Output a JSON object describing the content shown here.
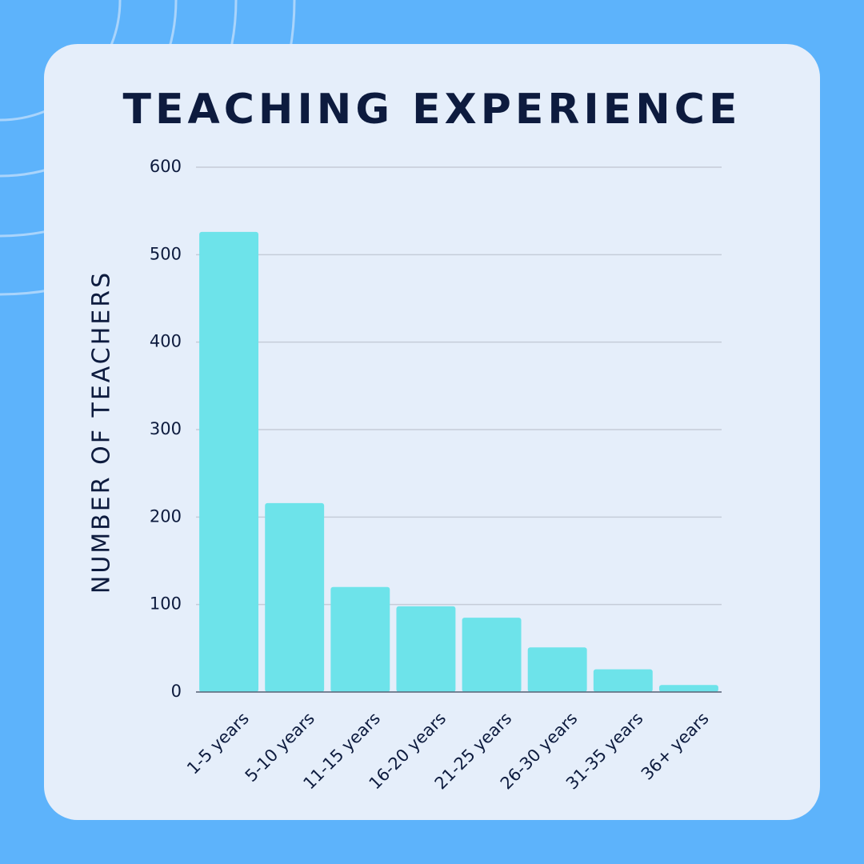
{
  "chart_data": {
    "type": "bar",
    "title": "TEACHING EXPERIENCE",
    "y_label": "NUMBER OF TEACHERS",
    "categories": [
      "1-5 years",
      "5-10 years",
      "11-15 years",
      "16-20 years",
      "21-25 years",
      "26-30 years",
      "31-35 years",
      "36+ years"
    ],
    "values": [
      526,
      216,
      120,
      98,
      85,
      51,
      26,
      8
    ],
    "color": "#6de3ea",
    "ylim": [
      0,
      600
    ],
    "yticks": [
      0,
      100,
      200,
      300,
      400,
      500,
      600
    ],
    "grid": true
  }
}
